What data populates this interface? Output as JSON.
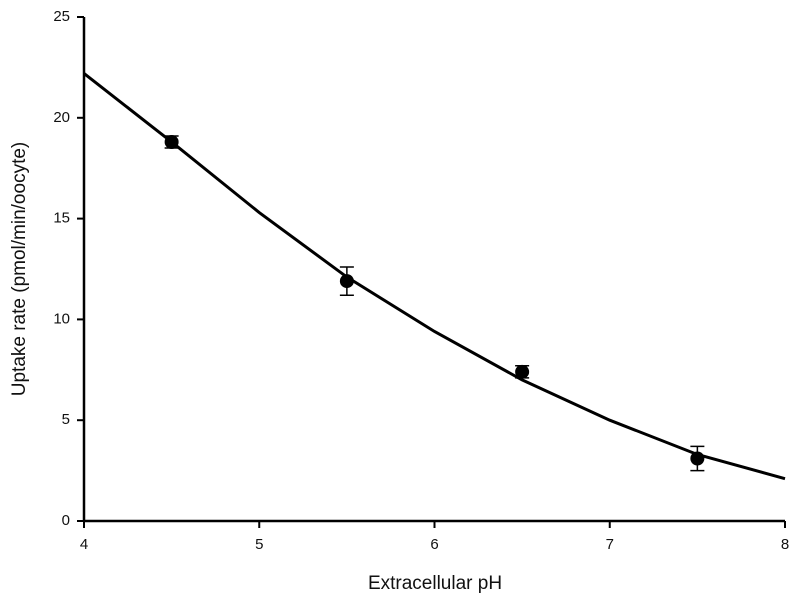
{
  "chart_data": {
    "type": "scatter",
    "xlabel": "Extracellular pH",
    "ylabel": "Uptake rate (pmol/min/oocyte)",
    "x": [
      4.5,
      5.5,
      6.5,
      7.5
    ],
    "values": [
      18.8,
      11.9,
      7.4,
      3.1
    ],
    "errors": [
      0.3,
      0.7,
      0.3,
      0.6
    ],
    "fit": {
      "x": [
        4,
        4.5,
        5,
        5.5,
        6,
        6.5,
        7,
        7.5,
        8
      ],
      "values": [
        22.2,
        18.8,
        15.3,
        12.1,
        9.4,
        7.0,
        5.0,
        3.3,
        2.1
      ]
    },
    "color": "#000000",
    "xlim": [
      4,
      8
    ],
    "xticks": [
      4,
      5,
      6,
      7,
      8
    ],
    "ylim": [
      0,
      25
    ],
    "yticks": [
      0,
      5,
      10,
      15,
      20,
      25
    ],
    "grid": false
  }
}
